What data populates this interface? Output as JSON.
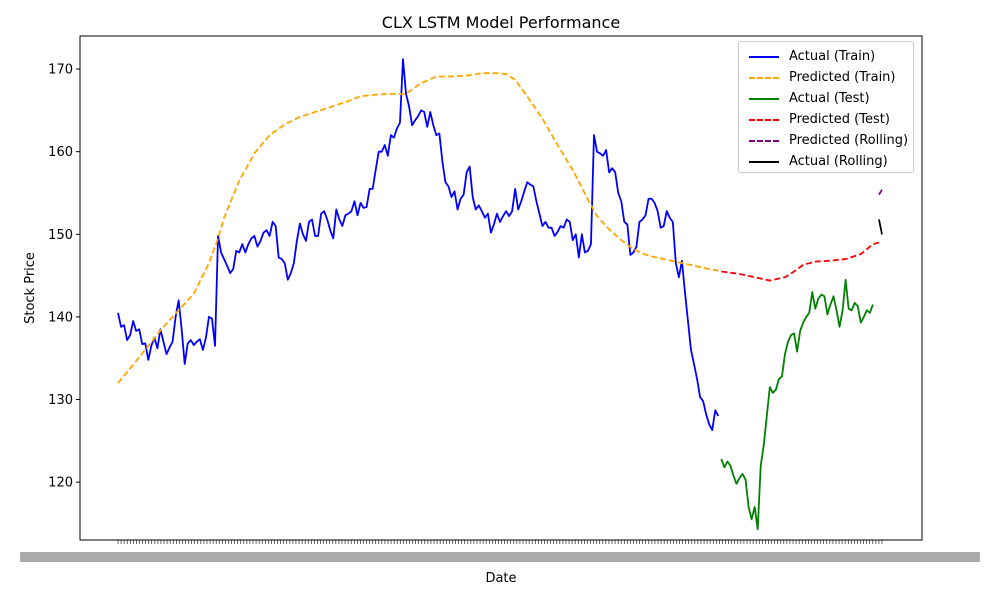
{
  "chart_data": {
    "type": "line",
    "title": "CLX LSTM Model Performance",
    "xlabel": "Date",
    "ylabel": "Stock Price",
    "ylim": [
      113.0,
      174.0
    ],
    "yticks": [
      120,
      130,
      140,
      150,
      160,
      170
    ],
    "x_index_range": [
      0,
      249
    ],
    "x_tick_labels_illegible": true,
    "grid": false,
    "legend_position": "top-right",
    "series": [
      {
        "name": "Actual (Train)",
        "color": "#0000ff",
        "style": "solid",
        "points": [
          [
            0,
            140.5
          ],
          [
            1,
            138.8
          ],
          [
            2,
            139.0
          ],
          [
            3,
            137.2
          ],
          [
            4,
            137.8
          ],
          [
            5,
            139.5
          ],
          [
            6,
            138.3
          ],
          [
            7,
            138.5
          ],
          [
            8,
            136.7
          ],
          [
            9,
            136.8
          ],
          [
            10,
            134.8
          ],
          [
            11,
            136.5
          ],
          [
            12,
            137.5
          ],
          [
            13,
            136.2
          ],
          [
            14,
            138.5
          ],
          [
            15,
            137.0
          ],
          [
            16,
            135.5
          ],
          [
            17,
            136.3
          ],
          [
            18,
            137.0
          ],
          [
            19,
            140.0
          ],
          [
            20,
            142.0
          ],
          [
            21,
            138.5
          ],
          [
            22,
            134.3
          ],
          [
            23,
            136.8
          ],
          [
            24,
            137.2
          ],
          [
            25,
            136.6
          ],
          [
            26,
            137.0
          ],
          [
            27,
            137.3
          ],
          [
            28,
            136.0
          ],
          [
            29,
            137.5
          ],
          [
            30,
            140.0
          ],
          [
            31,
            139.8
          ],
          [
            32,
            136.5
          ],
          [
            33,
            149.8
          ],
          [
            34,
            147.8
          ],
          [
            35,
            147.0
          ],
          [
            36,
            146.2
          ],
          [
            37,
            145.3
          ],
          [
            38,
            145.8
          ],
          [
            39,
            148.0
          ],
          [
            40,
            147.8
          ],
          [
            41,
            148.8
          ],
          [
            42,
            147.8
          ],
          [
            43,
            148.8
          ],
          [
            44,
            149.5
          ],
          [
            45,
            149.8
          ],
          [
            46,
            148.5
          ],
          [
            47,
            149.2
          ],
          [
            48,
            150.2
          ],
          [
            49,
            150.5
          ],
          [
            50,
            149.8
          ],
          [
            51,
            151.5
          ],
          [
            52,
            151.0
          ],
          [
            53,
            147.2
          ],
          [
            54,
            147.0
          ],
          [
            55,
            146.5
          ],
          [
            56,
            144.5
          ],
          [
            57,
            145.3
          ],
          [
            58,
            146.5
          ],
          [
            59,
            149.2
          ],
          [
            60,
            151.3
          ],
          [
            61,
            150.0
          ],
          [
            62,
            149.2
          ],
          [
            63,
            151.5
          ],
          [
            64,
            151.8
          ],
          [
            65,
            149.8
          ],
          [
            66,
            149.8
          ],
          [
            67,
            152.5
          ],
          [
            68,
            152.8
          ],
          [
            69,
            151.8
          ],
          [
            70,
            150.5
          ],
          [
            71,
            149.5
          ],
          [
            72,
            153.0
          ],
          [
            73,
            151.8
          ],
          [
            74,
            151.0
          ],
          [
            75,
            152.3
          ],
          [
            76,
            152.5
          ],
          [
            77,
            152.8
          ],
          [
            78,
            154.0
          ],
          [
            79,
            152.3
          ],
          [
            80,
            153.8
          ],
          [
            81,
            153.2
          ],
          [
            82,
            153.3
          ],
          [
            83,
            155.5
          ],
          [
            84,
            155.5
          ],
          [
            85,
            157.8
          ],
          [
            86,
            160.0
          ],
          [
            87,
            160.0
          ],
          [
            88,
            160.8
          ],
          [
            89,
            159.5
          ],
          [
            90,
            162.0
          ],
          [
            91,
            161.7
          ],
          [
            92,
            162.8
          ],
          [
            93,
            163.5
          ],
          [
            94,
            171.2
          ],
          [
            95,
            167.0
          ],
          [
            96,
            165.5
          ],
          [
            97,
            163.2
          ],
          [
            98,
            163.8
          ],
          [
            99,
            164.3
          ],
          [
            100,
            165.0
          ],
          [
            101,
            164.8
          ],
          [
            102,
            163.0
          ],
          [
            103,
            164.8
          ],
          [
            104,
            163.2
          ],
          [
            105,
            162.0
          ],
          [
            106,
            162.2
          ],
          [
            107,
            158.8
          ],
          [
            108,
            156.3
          ],
          [
            109,
            155.8
          ],
          [
            110,
            154.5
          ],
          [
            111,
            155.2
          ],
          [
            112,
            153.0
          ],
          [
            113,
            154.3
          ],
          [
            114,
            154.8
          ],
          [
            115,
            157.5
          ],
          [
            116,
            158.2
          ],
          [
            117,
            154.5
          ],
          [
            118,
            153.0
          ],
          [
            119,
            153.5
          ],
          [
            120,
            152.8
          ],
          [
            121,
            152.0
          ],
          [
            122,
            152.5
          ],
          [
            123,
            150.2
          ],
          [
            124,
            151.2
          ],
          [
            125,
            152.5
          ],
          [
            126,
            151.5
          ],
          [
            127,
            152.2
          ],
          [
            128,
            152.8
          ],
          [
            129,
            152.2
          ],
          [
            130,
            152.8
          ],
          [
            131,
            155.5
          ],
          [
            132,
            153.0
          ],
          [
            133,
            154.0
          ],
          [
            134,
            155.2
          ],
          [
            135,
            156.3
          ],
          [
            136,
            156.0
          ],
          [
            137,
            155.8
          ],
          [
            138,
            154.0
          ],
          [
            139,
            152.5
          ],
          [
            140,
            151.0
          ],
          [
            141,
            151.5
          ],
          [
            142,
            150.8
          ],
          [
            143,
            150.8
          ],
          [
            144,
            149.8
          ],
          [
            145,
            150.3
          ],
          [
            146,
            151.0
          ],
          [
            147,
            150.8
          ],
          [
            148,
            151.8
          ],
          [
            149,
            151.5
          ],
          [
            150,
            149.3
          ],
          [
            151,
            150.0
          ],
          [
            152,
            147.2
          ],
          [
            153,
            150.0
          ],
          [
            154,
            147.8
          ],
          [
            155,
            148.0
          ],
          [
            156,
            148.8
          ],
          [
            157,
            162.0
          ],
          [
            158,
            160.0
          ],
          [
            159,
            159.8
          ],
          [
            160,
            159.5
          ],
          [
            161,
            160.2
          ],
          [
            162,
            157.5
          ],
          [
            163,
            158.0
          ],
          [
            164,
            157.5
          ],
          [
            165,
            155.0
          ],
          [
            166,
            154.0
          ],
          [
            167,
            151.5
          ],
          [
            168,
            151.2
          ],
          [
            169,
            147.5
          ],
          [
            170,
            147.8
          ],
          [
            171,
            148.5
          ],
          [
            172,
            151.5
          ],
          [
            173,
            151.8
          ],
          [
            174,
            152.3
          ],
          [
            175,
            154.3
          ],
          [
            176,
            154.3
          ],
          [
            177,
            153.8
          ],
          [
            178,
            152.8
          ],
          [
            179,
            150.8
          ],
          [
            180,
            151.0
          ],
          [
            181,
            152.8
          ],
          [
            182,
            152.0
          ],
          [
            183,
            151.5
          ],
          [
            184,
            146.5
          ],
          [
            185,
            144.8
          ],
          [
            186,
            146.8
          ],
          [
            187,
            143.0
          ],
          [
            188,
            139.5
          ],
          [
            189,
            136.0
          ],
          [
            190,
            134.3
          ],
          [
            191,
            132.5
          ],
          [
            192,
            130.3
          ],
          [
            193,
            129.8
          ],
          [
            194,
            128.2
          ],
          [
            195,
            127.0
          ],
          [
            196,
            126.3
          ],
          [
            197,
            128.7
          ],
          [
            198,
            128.0
          ]
        ]
      },
      {
        "name": "Predicted (Train)",
        "color": "#ffa500",
        "style": "dashed",
        "points": [
          [
            0,
            132.0
          ],
          [
            5,
            134.2
          ],
          [
            10,
            136.5
          ],
          [
            15,
            138.8
          ],
          [
            20,
            140.8
          ],
          [
            25,
            142.8
          ],
          [
            30,
            146.5
          ],
          [
            33,
            149.5
          ],
          [
            35,
            152.0
          ],
          [
            40,
            156.5
          ],
          [
            45,
            159.8
          ],
          [
            50,
            162.0
          ],
          [
            55,
            163.3
          ],
          [
            60,
            164.2
          ],
          [
            65,
            164.8
          ],
          [
            70,
            165.4
          ],
          [
            75,
            166.0
          ],
          [
            80,
            166.7
          ],
          [
            85,
            166.9
          ],
          [
            90,
            167.0
          ],
          [
            95,
            167.0
          ],
          [
            100,
            168.3
          ],
          [
            105,
            169.1
          ],
          [
            110,
            169.1
          ],
          [
            115,
            169.2
          ],
          [
            120,
            169.5
          ],
          [
            125,
            169.5
          ],
          [
            128,
            169.4
          ],
          [
            131,
            168.7
          ],
          [
            134,
            167.2
          ],
          [
            137,
            165.6
          ],
          [
            140,
            164.0
          ],
          [
            145,
            160.8
          ],
          [
            150,
            157.8
          ],
          [
            155,
            154.2
          ],
          [
            158,
            152.2
          ],
          [
            162,
            150.6
          ],
          [
            166,
            149.3
          ],
          [
            170,
            148.2
          ],
          [
            175,
            147.4
          ],
          [
            180,
            147.0
          ],
          [
            185,
            146.6
          ],
          [
            190,
            146.2
          ],
          [
            195,
            145.8
          ],
          [
            198,
            145.6
          ]
        ]
      },
      {
        "name": "Actual (Test)",
        "color": "#008000",
        "style": "solid",
        "points": [
          [
            199,
            122.8
          ],
          [
            200,
            121.8
          ],
          [
            201,
            122.5
          ],
          [
            202,
            122.0
          ],
          [
            203,
            120.8
          ],
          [
            204,
            119.8
          ],
          [
            205,
            120.5
          ],
          [
            206,
            121.0
          ],
          [
            207,
            120.3
          ],
          [
            208,
            117.0
          ],
          [
            209,
            115.5
          ],
          [
            210,
            117.0
          ],
          [
            211,
            114.3
          ],
          [
            212,
            122.0
          ],
          [
            213,
            124.5
          ],
          [
            214,
            128.0
          ],
          [
            215,
            131.5
          ],
          [
            216,
            130.8
          ],
          [
            217,
            131.2
          ],
          [
            218,
            132.5
          ],
          [
            219,
            132.8
          ],
          [
            220,
            135.5
          ],
          [
            221,
            137.0
          ],
          [
            222,
            137.8
          ],
          [
            223,
            138.0
          ],
          [
            224,
            135.8
          ],
          [
            225,
            138.3
          ],
          [
            226,
            139.3
          ],
          [
            227,
            140.0
          ],
          [
            228,
            140.5
          ],
          [
            229,
            143.0
          ],
          [
            230,
            141.0
          ],
          [
            231,
            142.2
          ],
          [
            232,
            142.7
          ],
          [
            233,
            142.5
          ],
          [
            234,
            140.3
          ],
          [
            235,
            141.5
          ],
          [
            236,
            142.5
          ],
          [
            237,
            140.8
          ],
          [
            238,
            138.8
          ],
          [
            239,
            140.8
          ],
          [
            240,
            144.5
          ],
          [
            241,
            141.0
          ],
          [
            242,
            140.8
          ],
          [
            243,
            141.7
          ],
          [
            244,
            141.3
          ],
          [
            245,
            139.3
          ],
          [
            246,
            140.0
          ],
          [
            247,
            140.8
          ],
          [
            248,
            140.5
          ],
          [
            249,
            141.5
          ]
        ]
      },
      {
        "name": "Predicted (Test)",
        "color": "#ff0000",
        "style": "dashed",
        "points": [
          [
            199,
            145.5
          ],
          [
            205,
            145.2
          ],
          [
            210,
            144.8
          ],
          [
            215,
            144.4
          ],
          [
            220,
            144.8
          ],
          [
            223,
            145.5
          ],
          [
            226,
            146.3
          ],
          [
            230,
            146.7
          ],
          [
            235,
            146.8
          ],
          [
            240,
            147.0
          ],
          [
            245,
            147.6
          ],
          [
            249,
            148.8
          ],
          [
            251,
            149.0
          ]
        ]
      },
      {
        "name": "Predicted (Rolling)",
        "color": "#800080",
        "style": "dashed",
        "points": [
          [
            251,
            154.8
          ],
          [
            252,
            155.4
          ]
        ]
      },
      {
        "name": "Actual (Rolling)",
        "color": "#000000",
        "style": "solid",
        "points": [
          [
            251,
            151.8
          ],
          [
            252,
            150.0
          ]
        ]
      }
    ]
  }
}
